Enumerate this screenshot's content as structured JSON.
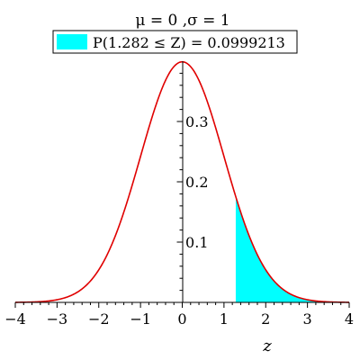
{
  "chart_data": {
    "type": "area",
    "title": "μ = 0 ,σ = 1",
    "xlabel": "z",
    "ylabel": "",
    "xlim": [
      -4,
      4
    ],
    "ylim": [
      0,
      0.4
    ],
    "x_ticks": [
      -4,
      -3,
      -2,
      -1,
      0,
      1,
      2,
      3,
      4
    ],
    "x_tick_labels": [
      "−4",
      "−3",
      "−2",
      "−1",
      "0",
      "1",
      "2",
      "3",
      "4"
    ],
    "x_minor_step": 0.2,
    "y_ticks": [
      0.1,
      0.2,
      0.3
    ],
    "y_tick_labels": [
      "0.1",
      "0.2",
      "0.3"
    ],
    "y_minor_step": 0.02,
    "grid": false,
    "legend_position": "top-center",
    "series": [
      {
        "distribution": "normal",
        "mu": 0,
        "sigma": 1,
        "color": "#e00000"
      }
    ],
    "shaded_region": {
      "from": 1.282,
      "to": 4,
      "color": "#00ffff",
      "legend_label": "P(1.282 ≤ Z) = 0.0999213"
    }
  }
}
